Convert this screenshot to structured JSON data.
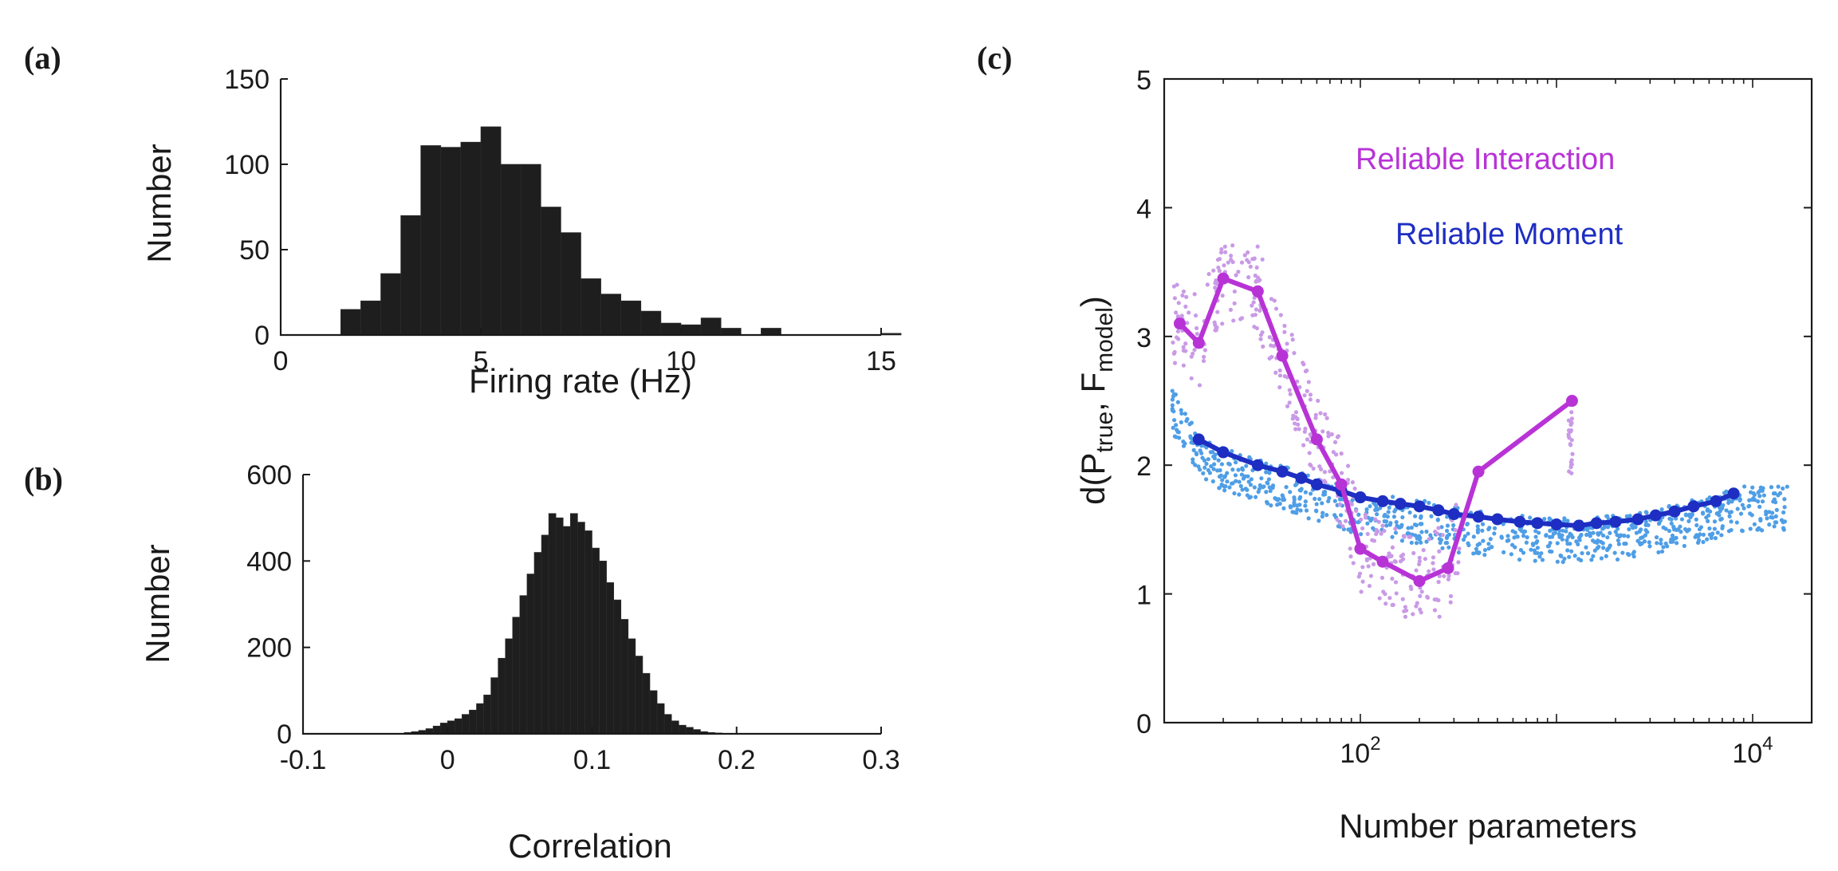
{
  "panels": [
    {
      "id": "a",
      "panel_label": "(a)",
      "chart_data": {
        "type": "bar",
        "subtype": "histogram",
        "xlabel": "Firing rate (Hz)",
        "ylabel": "Number",
        "xlim": [
          0,
          15
        ],
        "ylim": [
          0,
          150
        ],
        "xticks": [
          0,
          5,
          10,
          15
        ],
        "xtick_labels": [
          "0",
          "5",
          "10",
          "15"
        ],
        "yticks": [
          0,
          50,
          100,
          150
        ],
        "ytick_labels": [
          "0",
          "50",
          "100",
          "150"
        ],
        "bin_width": 0.5,
        "bin_start": 1.5,
        "values": [
          15,
          20,
          36,
          70,
          111,
          110,
          113,
          122,
          100,
          100,
          75,
          60,
          33,
          24,
          20,
          14,
          7,
          6,
          10,
          4,
          0,
          4,
          0,
          0,
          0,
          0,
          0,
          1,
          0
        ],
        "bar_color": "#1e1e1e"
      }
    },
    {
      "id": "b",
      "panel_label": "(b)",
      "chart_data": {
        "type": "bar",
        "subtype": "histogram",
        "xlabel": "Correlation",
        "ylabel": "Number",
        "xlim": [
          -0.1,
          0.3
        ],
        "ylim": [
          0,
          600
        ],
        "xticks": [
          -0.1,
          0,
          0.1,
          0.2,
          0.3
        ],
        "xtick_labels": [
          "-0.1",
          "0",
          "0.1",
          "0.2",
          "0.3"
        ],
        "yticks": [
          0,
          200,
          400,
          600
        ],
        "ytick_labels": [
          "0",
          "200",
          "400",
          "600"
        ],
        "bin_width": 0.005,
        "bin_start": -0.03,
        "values": [
          3,
          5,
          8,
          12,
          18,
          25,
          30,
          35,
          45,
          55,
          70,
          90,
          130,
          175,
          220,
          270,
          320,
          370,
          420,
          460,
          510,
          500,
          480,
          510,
          490,
          470,
          430,
          400,
          350,
          310,
          265,
          220,
          180,
          140,
          100,
          70,
          45,
          30,
          20,
          15,
          10,
          5,
          3,
          2
        ],
        "bar_color": "#1e1e1e"
      }
    },
    {
      "id": "c",
      "panel_label": "(c)",
      "chart_data": {
        "type": "line",
        "xscale": "log",
        "xlabel": "Number parameters",
        "ylabel_prefix": "d(P",
        "ylabel_sub1": "true",
        "ylabel_mid": ", F",
        "ylabel_sub2": "model",
        "ylabel_suffix": ")",
        "xlim": [
          10,
          20000
        ],
        "ylim": [
          0,
          5
        ],
        "xticks": [
          100,
          10000
        ],
        "xtick_base": "10",
        "xtick_exponents": [
          "2",
          "4"
        ],
        "yticks": [
          0,
          1,
          2,
          3,
          4,
          5
        ],
        "ytick_labels": [
          "0",
          "1",
          "2",
          "3",
          "4",
          "5"
        ],
        "series": [
          {
            "name": "Reliable Interaction",
            "color": "#b833d6",
            "scatter_color": "#c99ae6",
            "x": [
              12,
              15,
              20,
              30,
              40,
              60,
              80,
              100,
              130,
              200,
              280,
              400,
              1200
            ],
            "y": [
              3.1,
              2.95,
              3.45,
              3.35,
              2.85,
              2.2,
              1.85,
              1.35,
              1.25,
              1.1,
              1.2,
              1.95,
              2.5
            ]
          },
          {
            "name": "Reliable Moment",
            "color": "#1e2ec2",
            "scatter_color": "#4f9ee6",
            "x": [
              15,
              20,
              30,
              40,
              50,
              60,
              80,
              100,
              130,
              160,
              200,
              250,
              300,
              400,
              500,
              650,
              800,
              1000,
              1300,
              1600,
              2000,
              2600,
              3200,
              4000,
              5000,
              6500,
              8000
            ],
            "y": [
              2.2,
              2.1,
              2.0,
              1.95,
              1.9,
              1.85,
              1.8,
              1.75,
              1.72,
              1.7,
              1.68,
              1.65,
              1.62,
              1.6,
              1.58,
              1.56,
              1.55,
              1.54,
              1.53,
              1.55,
              1.56,
              1.58,
              1.61,
              1.64,
              1.68,
              1.72,
              1.78
            ]
          }
        ]
      }
    }
  ]
}
